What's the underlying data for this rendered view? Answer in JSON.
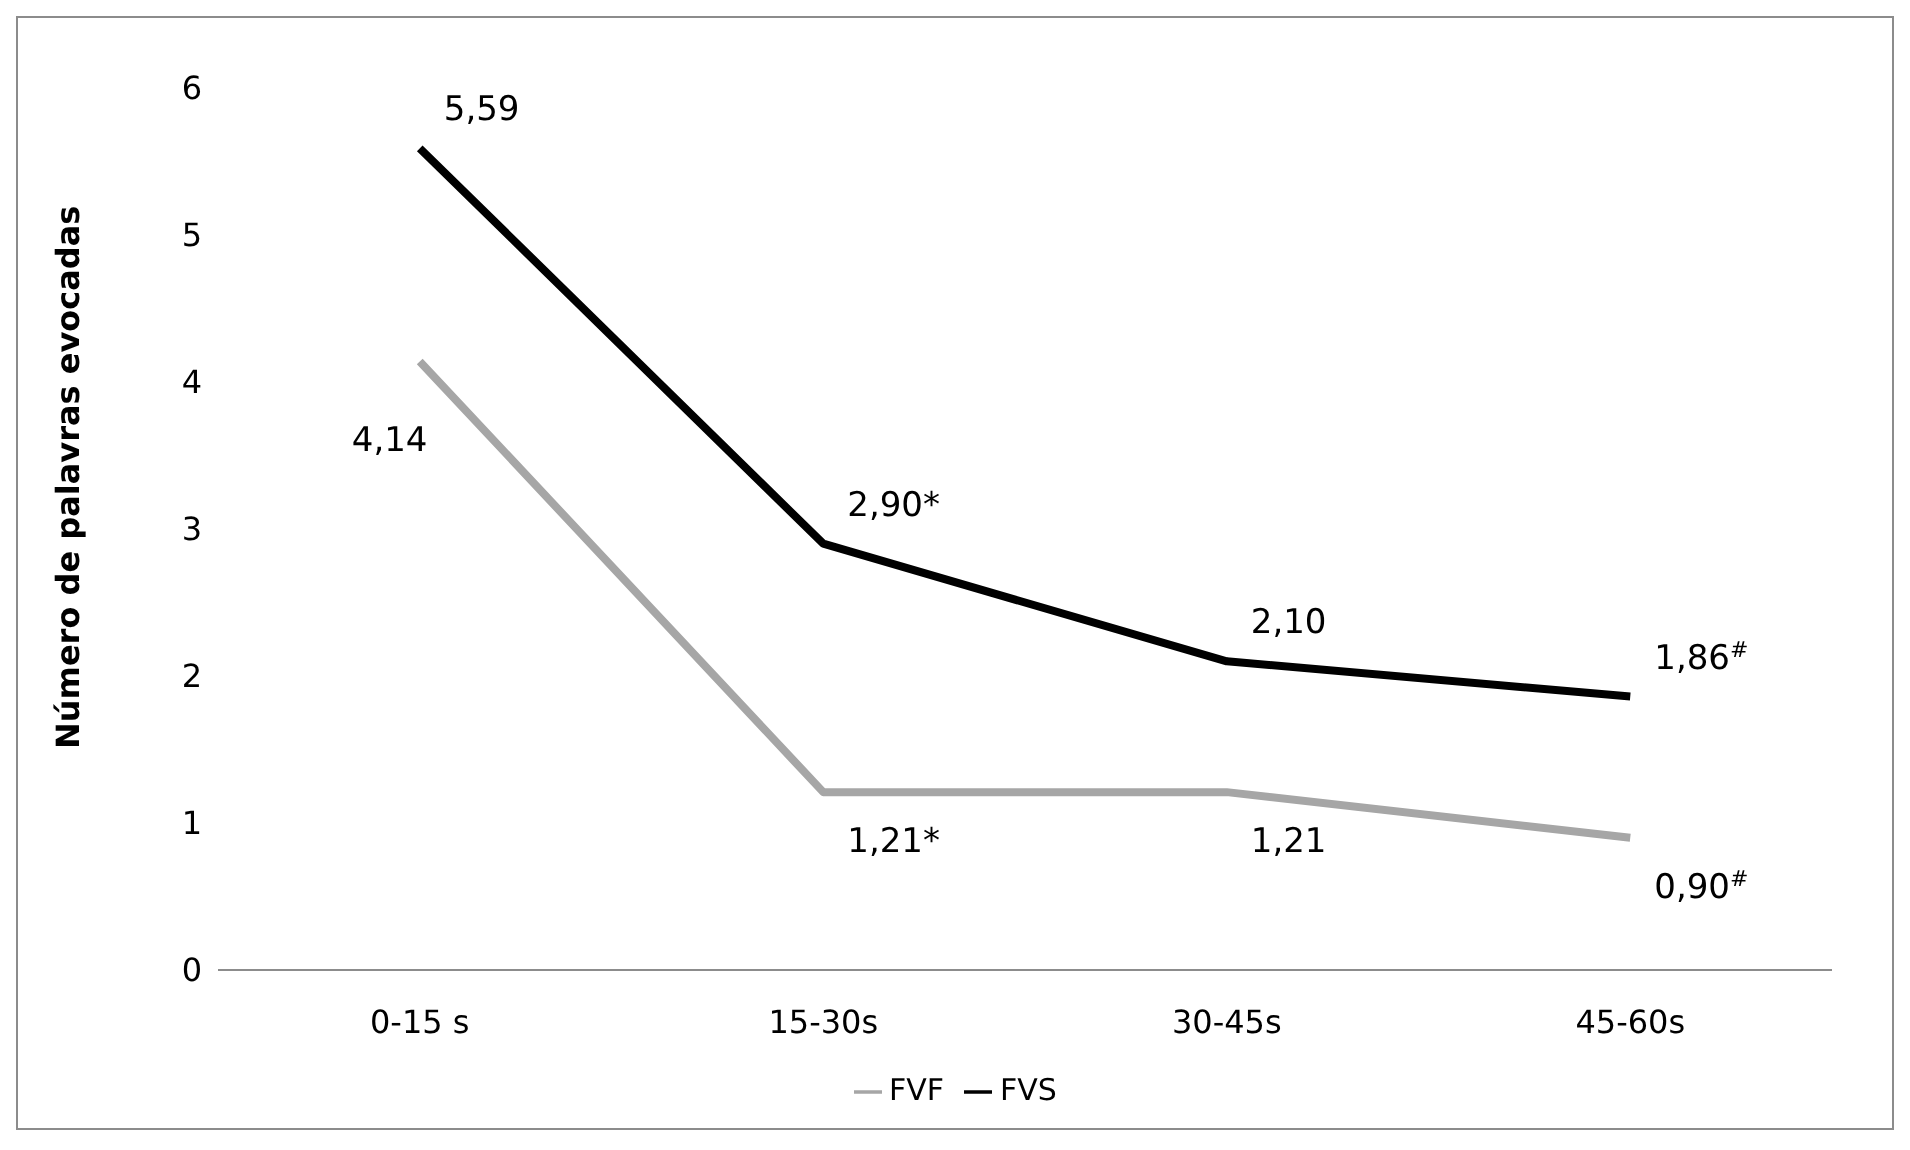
{
  "chart_data": {
    "type": "line",
    "ylabel": "Número de palavras evocadas",
    "categories": [
      "0-15 s",
      "15-30s",
      "30-45s",
      "45-60s"
    ],
    "series": [
      {
        "name": "FVS",
        "color": "#000000",
        "values": [
          5.59,
          2.9,
          2.1,
          1.86
        ],
        "value_labels": [
          "5,59",
          "2,90*",
          "2,10",
          "1,86$^{#}$"
        ]
      },
      {
        "name": "FVF",
        "color": "#a6a6a6",
        "values": [
          4.14,
          1.21,
          1.21,
          0.9
        ],
        "value_labels": [
          "4,14",
          "1,21*",
          "1,21",
          "0,90$^{#}$"
        ]
      }
    ],
    "ylim": [
      0,
      6
    ],
    "yticks": [
      0,
      1,
      2,
      3,
      4,
      5,
      6
    ],
    "grid": false,
    "legend": "bottom",
    "marker": "none",
    "line_style": "solid"
  }
}
